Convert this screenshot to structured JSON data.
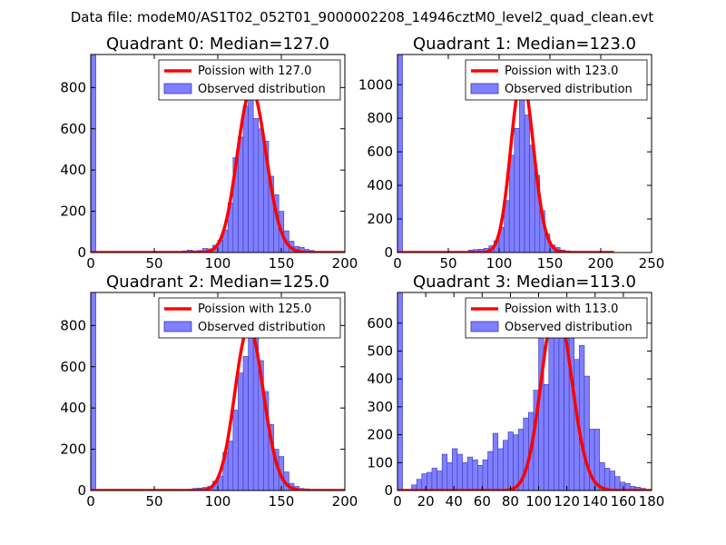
{
  "suptitle": "Data file: modeM0/AS1T02_052T01_9000002208_14946cztM0_level2_quad_clean.evt",
  "colors": {
    "bar_fill": "#7f7fff",
    "bar_edge": "#3a3ab8",
    "curve": "#ff0000"
  },
  "chart_data": [
    {
      "type": "bar",
      "title": "Quadrant 0: Median=127.0",
      "legend": {
        "placement": "top-right",
        "curve_label": "Poission with 127.0",
        "bar_label": "Observed distribution"
      },
      "xlim": [
        0,
        200
      ],
      "ylim": [
        0,
        960
      ],
      "xticks": [
        0,
        50,
        100,
        150,
        200
      ],
      "yticks": [
        0,
        200,
        400,
        600,
        800
      ],
      "bin_width": 4.0,
      "bins": [
        [
          0,
          960
        ],
        [
          68,
          3
        ],
        [
          72,
          8
        ],
        [
          76,
          12
        ],
        [
          80,
          8
        ],
        [
          84,
          10
        ],
        [
          88,
          20
        ],
        [
          92,
          18
        ],
        [
          96,
          35
        ],
        [
          100,
          60
        ],
        [
          104,
          110
        ],
        [
          108,
          240
        ],
        [
          112,
          460
        ],
        [
          116,
          560
        ],
        [
          120,
          710
        ],
        [
          124,
          740
        ],
        [
          128,
          650
        ],
        [
          132,
          600
        ],
        [
          136,
          540
        ],
        [
          140,
          370
        ],
        [
          144,
          280
        ],
        [
          148,
          200
        ],
        [
          152,
          105
        ],
        [
          156,
          55
        ],
        [
          160,
          30
        ],
        [
          164,
          25
        ],
        [
          168,
          15
        ],
        [
          172,
          10
        ],
        [
          176,
          4
        ]
      ],
      "poisson_mean": 127.0,
      "poisson_scale": 790,
      "curve_range": [
        0,
        200
      ]
    },
    {
      "type": "bar",
      "title": "Quadrant 1: Median=123.0",
      "legend": {
        "placement": "top-right",
        "curve_label": "Poission with 123.0",
        "bar_label": "Observed distribution"
      },
      "xlim": [
        0,
        250
      ],
      "ylim": [
        0,
        1180
      ],
      "xticks": [
        0,
        50,
        100,
        150,
        200,
        250
      ],
      "yticks": [
        0,
        200,
        400,
        600,
        800,
        1000
      ],
      "bin_width": 5.0,
      "bins": [
        [
          0,
          1180
        ],
        [
          65,
          5
        ],
        [
          70,
          15
        ],
        [
          75,
          18
        ],
        [
          80,
          20
        ],
        [
          85,
          25
        ],
        [
          90,
          40
        ],
        [
          95,
          70
        ],
        [
          100,
          150
        ],
        [
          105,
          310
        ],
        [
          110,
          580
        ],
        [
          115,
          740
        ],
        [
          120,
          950
        ],
        [
          125,
          820
        ],
        [
          130,
          640
        ],
        [
          135,
          460
        ],
        [
          140,
          250
        ],
        [
          145,
          110
        ],
        [
          150,
          45
        ],
        [
          155,
          30
        ],
        [
          160,
          15
        ],
        [
          165,
          10
        ],
        [
          170,
          4
        ]
      ],
      "poisson_mean": 123.0,
      "poisson_scale": 1045,
      "curve_range": [
        0,
        213
      ]
    },
    {
      "type": "bar",
      "title": "Quadrant 2: Median=125.0",
      "legend": {
        "placement": "top-right",
        "curve_label": "Poission with 125.0",
        "bar_label": "Observed distribution"
      },
      "xlim": [
        0,
        200
      ],
      "ylim": [
        0,
        960
      ],
      "xticks": [
        0,
        50,
        100,
        150,
        200
      ],
      "yticks": [
        0,
        200,
        400,
        600,
        800
      ],
      "bin_width": 4.0,
      "bins": [
        [
          0,
          960
        ],
        [
          72,
          5
        ],
        [
          76,
          6
        ],
        [
          80,
          10
        ],
        [
          84,
          12
        ],
        [
          88,
          15
        ],
        [
          92,
          20
        ],
        [
          96,
          45
        ],
        [
          100,
          70
        ],
        [
          104,
          185
        ],
        [
          108,
          240
        ],
        [
          112,
          390
        ],
        [
          116,
          570
        ],
        [
          120,
          650
        ],
        [
          124,
          800
        ],
        [
          128,
          750
        ],
        [
          132,
          630
        ],
        [
          136,
          480
        ],
        [
          140,
          320
        ],
        [
          144,
          200
        ],
        [
          148,
          165
        ],
        [
          152,
          90
        ],
        [
          156,
          35
        ],
        [
          160,
          20
        ],
        [
          164,
          10
        ],
        [
          168,
          8
        ],
        [
          172,
          5
        ],
        [
          176,
          3
        ]
      ],
      "poisson_mean": 125.0,
      "poisson_scale": 790,
      "curve_range": [
        0,
        200
      ]
    },
    {
      "type": "bar",
      "title": "Quadrant 3: Median=113.0",
      "legend": {
        "placement": "top-right",
        "curve_label": "Poission with 113.0",
        "bar_label": "Observed distribution"
      },
      "xlim": [
        0,
        180
      ],
      "ylim": [
        0,
        710
      ],
      "xticks": [
        0,
        20,
        40,
        60,
        80,
        100,
        120,
        140,
        160,
        180
      ],
      "yticks": [
        0,
        100,
        200,
        300,
        400,
        500,
        600
      ],
      "bin_width": 3.6,
      "bins": [
        [
          0,
          710
        ],
        [
          10,
          20
        ],
        [
          13.6,
          40
        ],
        [
          17.2,
          60
        ],
        [
          20.8,
          65
        ],
        [
          24.4,
          80
        ],
        [
          28,
          70
        ],
        [
          31.6,
          130
        ],
        [
          35.2,
          100
        ],
        [
          38.8,
          150
        ],
        [
          42.4,
          130
        ],
        [
          46,
          100
        ],
        [
          49.6,
          120
        ],
        [
          53.2,
          110
        ],
        [
          56.8,
          90
        ],
        [
          60.4,
          110
        ],
        [
          64,
          140
        ],
        [
          67.6,
          205
        ],
        [
          71.2,
          150
        ],
        [
          74.8,
          180
        ],
        [
          78.4,
          210
        ],
        [
          82,
          200
        ],
        [
          85.6,
          220
        ],
        [
          89.2,
          260
        ],
        [
          92.8,
          280
        ],
        [
          96.4,
          360
        ],
        [
          100,
          590
        ],
        [
          103.6,
          380
        ],
        [
          107.2,
          600
        ],
        [
          110.8,
          680
        ],
        [
          114.4,
          660
        ],
        [
          118,
          620
        ],
        [
          121.6,
          560
        ],
        [
          125.2,
          470
        ],
        [
          128.8,
          520
        ],
        [
          132.4,
          410
        ],
        [
          136,
          220
        ],
        [
          139.6,
          220
        ],
        [
          143.2,
          100
        ],
        [
          146.8,
          80
        ],
        [
          150.4,
          70
        ],
        [
          154,
          50
        ],
        [
          157.6,
          30
        ],
        [
          161.2,
          25
        ],
        [
          164.8,
          15
        ],
        [
          168.4,
          12
        ],
        [
          172,
          8
        ]
      ],
      "poisson_mean": 113.0,
      "poisson_scale": 665,
      "curve_range": [
        0,
        180
      ]
    }
  ]
}
